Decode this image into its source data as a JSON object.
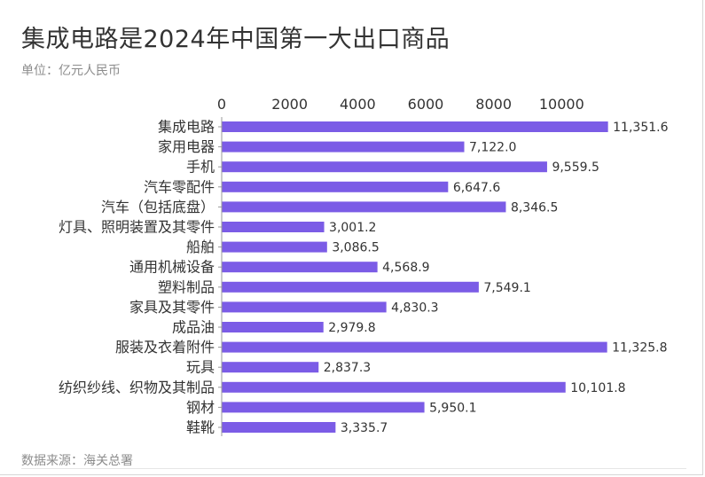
{
  "title": "集成电路是2024年中国第一大出口商品",
  "unit_label": "单位：亿元人民币",
  "source_label": "数据来源：海关总署",
  "colors": {
    "bar": "#7b5ce6",
    "axis": "#999999",
    "text": "#333333",
    "muted": "#8c8c8c"
  },
  "chart_data": {
    "type": "bar",
    "orientation": "horizontal",
    "categories": [
      "集成电路",
      "家用电器",
      "手机",
      "汽车零配件",
      "汽车（包括底盘）",
      "灯具、照明装置及其零件",
      "船舶",
      "通用机械设备",
      "塑料制品",
      "家具及其零件",
      "成品油",
      "服装及衣着附件",
      "玩具",
      "纺织纱线、织物及其制品",
      "钢材",
      "鞋靴"
    ],
    "values": [
      11351.6,
      7122.0,
      9559.5,
      6647.6,
      8346.5,
      3001.2,
      3086.5,
      4568.9,
      7549.1,
      4830.3,
      2979.8,
      11325.8,
      2837.3,
      10101.8,
      5950.1,
      3335.7
    ],
    "value_labels": [
      "11,351.6",
      "7,122.0",
      "9,559.5",
      "6,647.6",
      "8,346.5",
      "3,001.2",
      "3,086.5",
      "4,568.9",
      "7,549.1",
      "4,830.3",
      "2,979.8",
      "11,325.8",
      "2,837.3",
      "10,101.8",
      "5,950.1",
      "3,335.7"
    ],
    "x_ticks": [
      "0",
      "2000",
      "4000",
      "6000",
      "8000",
      "10000"
    ],
    "x_tick_values": [
      0,
      2000,
      4000,
      6000,
      8000,
      10000
    ],
    "xlim": [
      0,
      11400
    ],
    "x_axis_position": "top",
    "grid": false,
    "legend": "none"
  }
}
